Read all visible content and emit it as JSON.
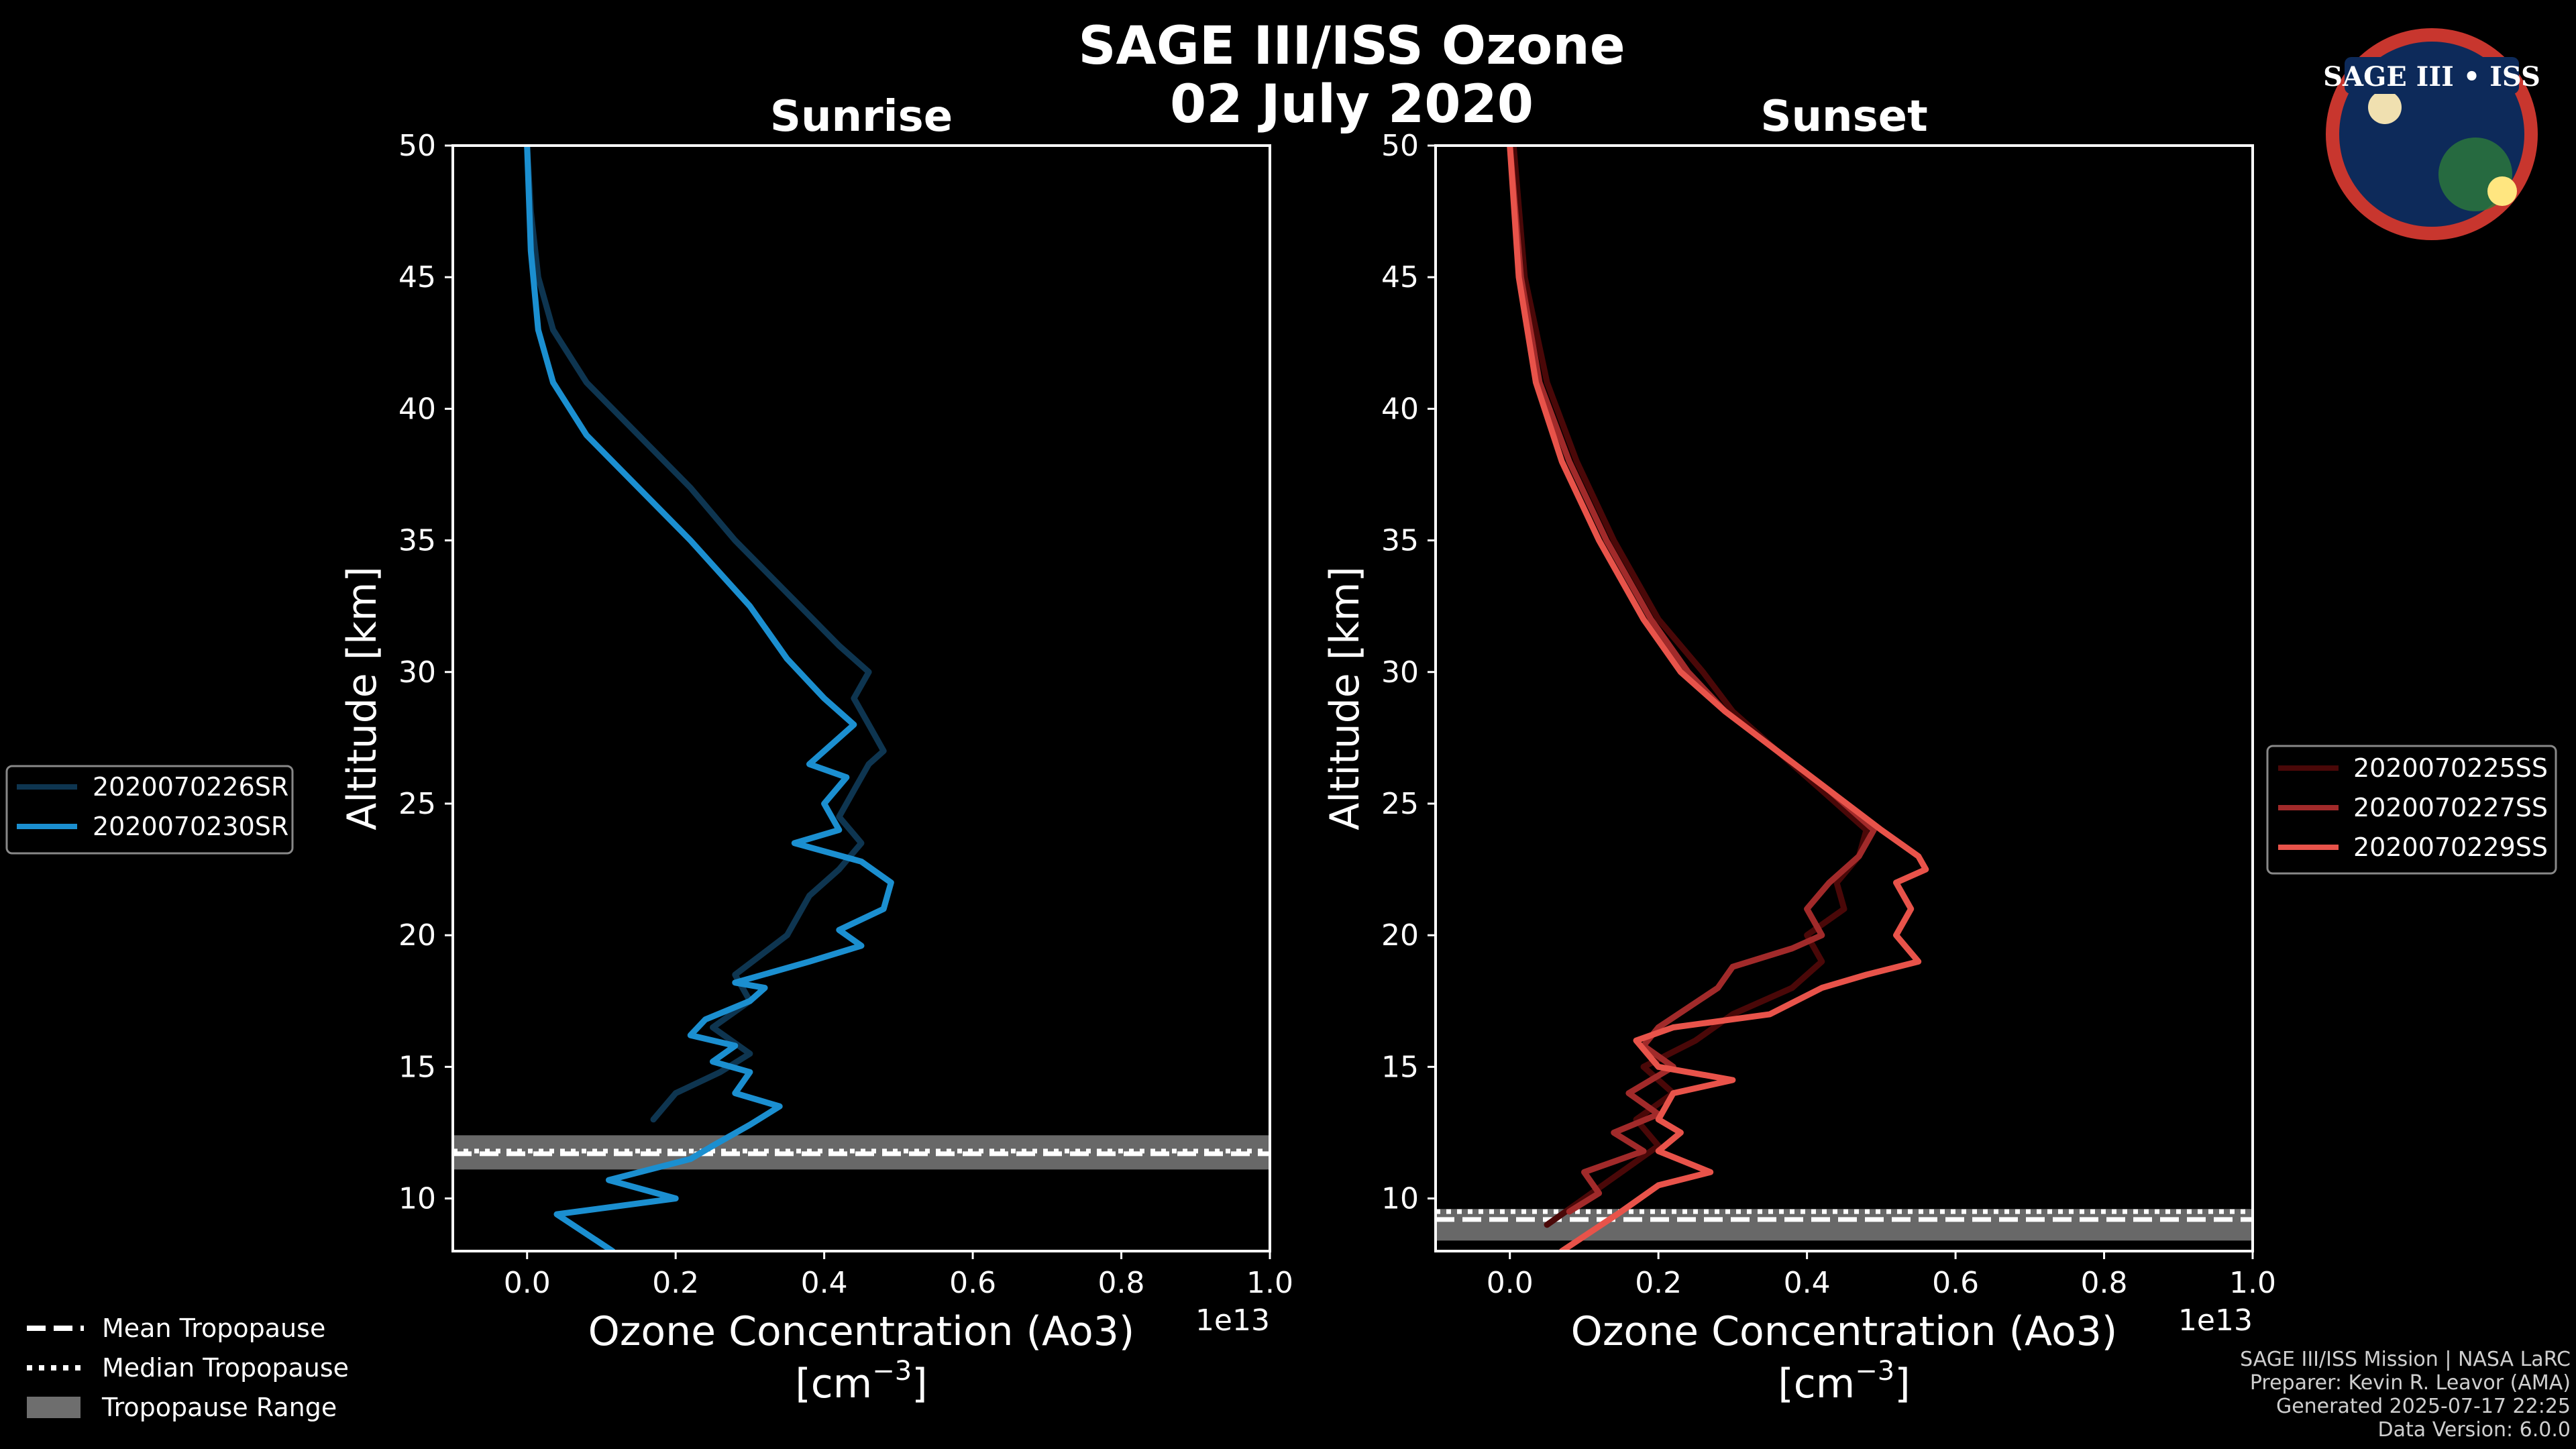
{
  "title_line1": "SAGE III/ISS Ozone",
  "title_line2": "02 July 2020",
  "logo": {
    "text": "SAGE III • ISS",
    "name": "sage-iii-iss-mission-patch"
  },
  "credits": [
    "SAGE III/ISS Mission | NASA LaRC",
    "Preparer: Kevin R. Leavor (AMA)",
    "Generated 2025-07-17 22:25",
    "Data Version: 6.0.0"
  ],
  "tropo_legend": {
    "mean": "Mean Tropopause",
    "median": "Median Tropopause",
    "range": "Tropopause Range"
  },
  "chart_data": [
    {
      "type": "line",
      "title": "Sunrise",
      "xlabel": "Ozone Concentration (Ao3)",
      "xlabel_unit": "[cm",
      "xlabel_unit_exp": "−3",
      "xlabel_unit_close": "]",
      "ylabel": "Altitude [km]",
      "offset_text": "1e13",
      "xlim": [
        -0.1,
        1.0
      ],
      "ylim": [
        8,
        50
      ],
      "xticks": [
        0.0,
        0.2,
        0.4,
        0.6,
        0.8,
        1.0
      ],
      "xtick_labels": [
        "0.0",
        "0.2",
        "0.4",
        "0.6",
        "0.8",
        "1.0"
      ],
      "yticks": [
        10,
        15,
        20,
        25,
        30,
        35,
        40,
        45,
        50
      ],
      "ytick_labels": [
        "10",
        "15",
        "20",
        "25",
        "30",
        "35",
        "40",
        "45",
        "50"
      ],
      "tropopause": {
        "mean": 11.7,
        "median": 11.8,
        "range": [
          11.1,
          12.4
        ]
      },
      "series": [
        {
          "name": "2020070226SR",
          "color": "#0e3550",
          "x": [
            0.17,
            0.2,
            0.26,
            0.3,
            0.25,
            0.3,
            0.28,
            0.35,
            0.38,
            0.42,
            0.45,
            0.42,
            0.44,
            0.46,
            0.48,
            0.46,
            0.44,
            0.46,
            0.42,
            0.35,
            0.28,
            0.22,
            0.15,
            0.08,
            0.035,
            0.015,
            0.005,
            0.0
          ],
          "y": [
            13,
            14,
            14.8,
            15.5,
            16.5,
            17.5,
            18.5,
            20,
            21.5,
            22.5,
            23.5,
            24.5,
            25.5,
            26.5,
            27,
            28,
            29,
            30,
            31,
            33,
            35,
            37,
            39,
            41,
            43,
            45,
            47.5,
            50
          ]
        },
        {
          "name": "2020070230SR",
          "color": "#1b8fd0",
          "x": [
            0.115,
            0.04,
            0.2,
            0.11,
            0.22,
            0.25,
            0.3,
            0.34,
            0.28,
            0.3,
            0.25,
            0.28,
            0.22,
            0.24,
            0.3,
            0.32,
            0.28,
            0.38,
            0.45,
            0.42,
            0.48,
            0.49,
            0.45,
            0.36,
            0.42,
            0.4,
            0.43,
            0.38,
            0.42,
            0.44,
            0.4,
            0.35,
            0.3,
            0.22,
            0.15,
            0.08,
            0.035,
            0.015,
            0.005,
            0.0
          ],
          "y": [
            8,
            9.4,
            10,
            10.7,
            11.5,
            12,
            12.8,
            13.5,
            14,
            14.8,
            15.2,
            15.8,
            16.2,
            16.8,
            17.5,
            18,
            18.2,
            19,
            19.6,
            20.2,
            21,
            22,
            22.8,
            23.5,
            24,
            25,
            26,
            26.5,
            27.5,
            28,
            29,
            30.5,
            32.5,
            35,
            37,
            39,
            41,
            43,
            46,
            50
          ]
        }
      ]
    },
    {
      "type": "line",
      "title": "Sunset",
      "xlabel": "Ozone Concentration (Ao3)",
      "xlabel_unit": "[cm",
      "xlabel_unit_exp": "−3",
      "xlabel_unit_close": "]",
      "ylabel": "Altitude [km]",
      "offset_text": "1e13",
      "xlim": [
        -0.1,
        1.0
      ],
      "ylim": [
        8,
        50
      ],
      "xticks": [
        0.0,
        0.2,
        0.4,
        0.6,
        0.8,
        1.0
      ],
      "xtick_labels": [
        "0.0",
        "0.2",
        "0.4",
        "0.6",
        "0.8",
        "1.0"
      ],
      "yticks": [
        10,
        15,
        20,
        25,
        30,
        35,
        40,
        45,
        50
      ],
      "ytick_labels": [
        "10",
        "15",
        "20",
        "25",
        "30",
        "35",
        "40",
        "45",
        "50"
      ],
      "tropopause": {
        "mean": 9.2,
        "median": 9.5,
        "range": [
          8.4,
          9.6
        ]
      },
      "series": [
        {
          "name": "2020070225SS",
          "color": "#4a0808",
          "x": [
            0.05,
            0.1,
            0.15,
            0.2,
            0.17,
            0.22,
            0.18,
            0.25,
            0.3,
            0.38,
            0.42,
            0.4,
            0.45,
            0.44,
            0.47,
            0.48,
            0.42,
            0.36,
            0.3,
            0.26,
            0.2,
            0.14,
            0.09,
            0.05,
            0.02,
            0.005
          ],
          "y": [
            9,
            10,
            11,
            12,
            13,
            14,
            15,
            16,
            17,
            18,
            19,
            20,
            21,
            22,
            23,
            24,
            25.5,
            27,
            28.5,
            30,
            32,
            35,
            38,
            41,
            45,
            50
          ]
        },
        {
          "name": "2020070227SS",
          "color": "#a12a2a",
          "x": [
            0.08,
            0.12,
            0.1,
            0.18,
            0.14,
            0.2,
            0.16,
            0.22,
            0.18,
            0.2,
            0.28,
            0.3,
            0.38,
            0.42,
            0.4,
            0.43,
            0.47,
            0.49,
            0.43,
            0.36,
            0.29,
            0.24,
            0.19,
            0.13,
            0.08,
            0.04,
            0.015,
            0.0
          ],
          "y": [
            9.5,
            10.2,
            11,
            11.8,
            12.5,
            13.2,
            14,
            15,
            15.8,
            16.5,
            18,
            18.8,
            19.5,
            20,
            21,
            22,
            23,
            24,
            25.5,
            27,
            28.5,
            30,
            32,
            35,
            38,
            41,
            45,
            50
          ]
        },
        {
          "name": "2020070229SS",
          "color": "#e8534a",
          "x": [
            0.07,
            0.15,
            0.2,
            0.27,
            0.2,
            0.23,
            0.2,
            0.22,
            0.3,
            0.2,
            0.17,
            0.22,
            0.35,
            0.42,
            0.48,
            0.55,
            0.52,
            0.54,
            0.52,
            0.56,
            0.55,
            0.5,
            0.43,
            0.36,
            0.29,
            0.23,
            0.18,
            0.12,
            0.07,
            0.035,
            0.012,
            0.0
          ],
          "y": [
            8,
            9.5,
            10.5,
            11,
            11.8,
            12.5,
            13,
            14,
            14.5,
            15,
            16,
            16.5,
            17,
            18,
            18.5,
            19,
            20,
            21,
            22,
            22.5,
            23,
            24,
            25.5,
            27,
            28.5,
            30,
            32,
            35,
            38,
            41,
            45,
            50
          ]
        }
      ]
    }
  ]
}
